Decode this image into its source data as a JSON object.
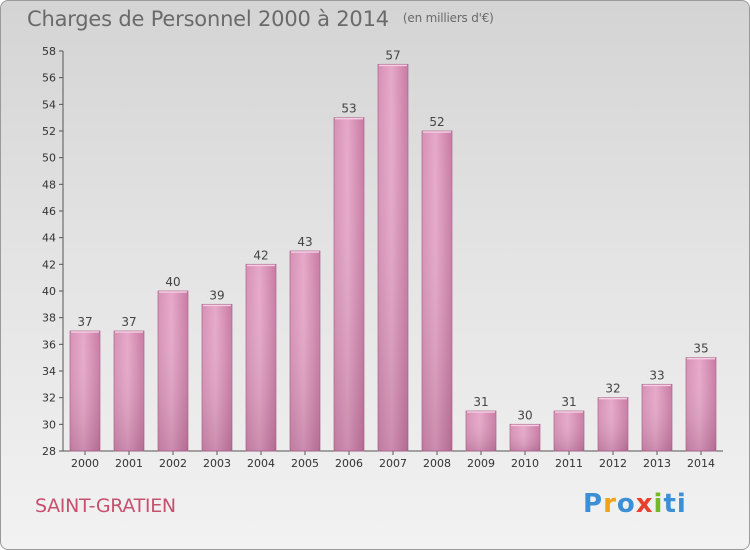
{
  "chart_data": {
    "type": "bar",
    "title": "Charges de Personnel 2000 à 2014",
    "unit_note": "(en milliers d'€)",
    "categories": [
      "2000",
      "2001",
      "2002",
      "2003",
      "2004",
      "2005",
      "2006",
      "2007",
      "2008",
      "2009",
      "2010",
      "2011",
      "2012",
      "2013",
      "2014"
    ],
    "values": [
      37,
      37,
      40,
      39,
      42,
      43,
      53,
      57,
      52,
      31,
      30,
      31,
      32,
      33,
      35
    ],
    "ylim": [
      28,
      58
    ],
    "yticks": [
      28,
      30,
      32,
      34,
      36,
      38,
      40,
      42,
      44,
      46,
      48,
      50,
      52,
      54,
      56,
      58
    ],
    "grid": false,
    "bar_color": "#d98fb6",
    "data_labels": true
  },
  "commune": "SAINT-GRATIEN",
  "logo": {
    "letters": [
      "P",
      "r",
      "o",
      "x",
      "i",
      "ti"
    ],
    "alt": "Proxiti"
  },
  "colors": {
    "title": "#6a6a6a",
    "commune": "#c8506f",
    "axis": "#555555"
  }
}
